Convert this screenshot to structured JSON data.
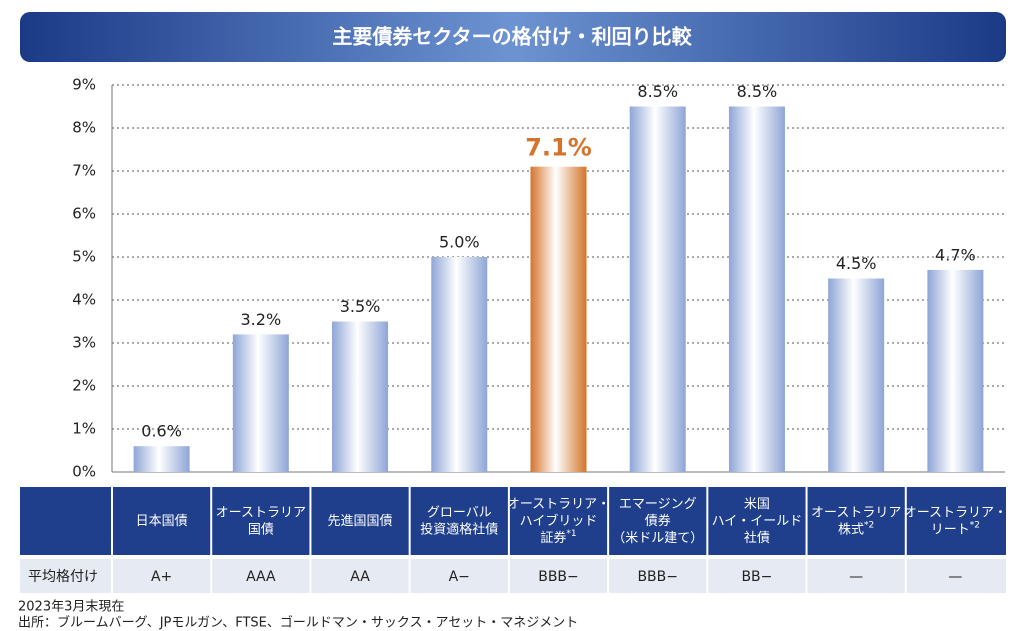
{
  "chart_data": {
    "type": "bar",
    "title": "主要債券セクターの格付け・利回り比較",
    "categories": [
      "日本国債",
      "オーストラリア\n国債",
      "先進国国債",
      "グローバル\n投資適格社債",
      "オーストラリア・\nハイブリッド\n証券*1",
      "エマージング\n債券\n（米ドル建て）",
      "米国\nハイ・イールド\n社債",
      "オーストラリア\n株式*2",
      "オーストラリア・\nリート*2"
    ],
    "values": [
      0.6,
      3.2,
      3.5,
      5.0,
      7.1,
      8.5,
      8.5,
      4.5,
      4.7
    ],
    "value_labels": [
      "0.6%",
      "3.2%",
      "3.5%",
      "5.0%",
      "7.1%",
      "8.5%",
      "8.5%",
      "4.5%",
      "4.7%"
    ],
    "colors": [
      "#8ea5d6",
      "#8ea5d6",
      "#8ea5d6",
      "#8ea5d6",
      "#d4742a",
      "#8ea5d6",
      "#8ea5d6",
      "#8ea5d6",
      "#8ea5d6"
    ],
    "label_colors": [
      "#222222",
      "#222222",
      "#222222",
      "#222222",
      "#d4742a",
      "#222222",
      "#222222",
      "#222222",
      "#222222"
    ],
    "ylim": [
      0,
      9
    ],
    "yticks": [
      {
        "value": 0,
        "label": "0%"
      },
      {
        "value": 1,
        "label": "1%"
      },
      {
        "value": 2,
        "label": "2%"
      },
      {
        "value": 3,
        "label": "3%"
      },
      {
        "value": 4,
        "label": "4%"
      },
      {
        "value": 5,
        "label": "5%"
      },
      {
        "value": 6,
        "label": "6%"
      },
      {
        "value": 7,
        "label": "7%"
      },
      {
        "value": 8,
        "label": "8%"
      },
      {
        "value": 9,
        "label": "9%"
      }
    ],
    "grid": true
  },
  "table": {
    "row_label": "平均格付け",
    "ratings": [
      "A+",
      "AAA",
      "AA",
      "A−",
      "BBB−",
      "BBB−",
      "BB−",
      "—",
      "—"
    ]
  },
  "footnotes": [
    "2023年3月末現在",
    "出所：ブルームバーグ、JPモルガン、FTSE、ゴールドマン・サックス・アセット・マネジメント"
  ]
}
